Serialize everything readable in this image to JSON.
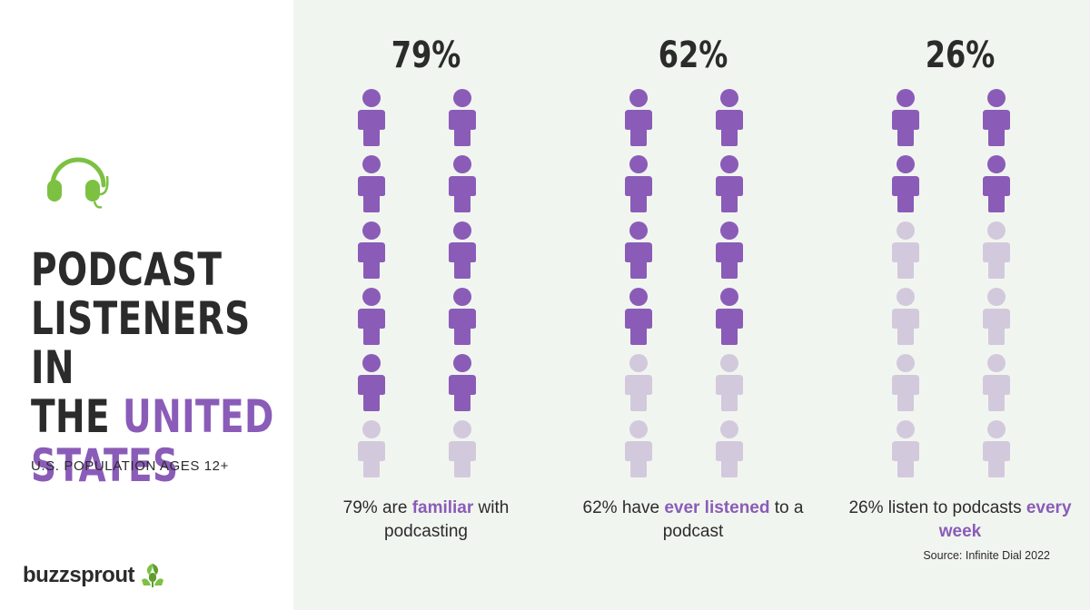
{
  "title": {
    "line1": "PODCAST",
    "line2": "LISTENERS IN",
    "line3_prefix": "THE ",
    "line3_accent": "UNITED",
    "line4_accent": "STATES"
  },
  "subtitle": "U.S. POPULATION AGES 12+",
  "logo": {
    "text": "buzzsprout",
    "icon": "sprout-mic-icon"
  },
  "headphone_icon": "headphones-icon",
  "source": "Source: Infinite Dial 2022",
  "colors": {
    "filled": "#8a5cb8",
    "empty": "#d3c9dd",
    "accent": "#8a5cb8",
    "icon_green": "#7cc142"
  },
  "chart_data": {
    "type": "pictogram",
    "unit_total": 12,
    "series": [
      {
        "label": "79%",
        "value": 79,
        "filled_icons": 10,
        "caption_pre": "79% are ",
        "caption_hl": "familiar",
        "caption_post": " with podcasting"
      },
      {
        "label": "62%",
        "value": 62,
        "filled_icons": 8,
        "caption_pre": "62% have ",
        "caption_hl": "ever listened",
        "caption_post": " to a podcast"
      },
      {
        "label": "26%",
        "value": 26,
        "filled_icons": 4,
        "caption_pre": "26% listen to podcasts ",
        "caption_hl": "every week",
        "caption_post": ""
      }
    ]
  }
}
